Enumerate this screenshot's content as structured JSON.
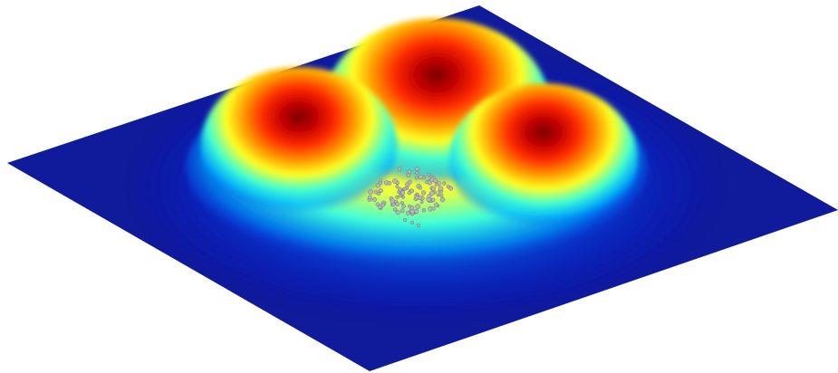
{
  "figure": {
    "kind": "3d-surface",
    "colormap": "jet",
    "colormap_stops": [
      "#00007f",
      "#0000ff",
      "#00ffff",
      "#ffff00",
      "#ff0000",
      "#7f0000"
    ],
    "plane_color": "#0a1a8c",
    "background": "#ffffff",
    "peaks": [
      {
        "label": "left",
        "height": 0.82
      },
      {
        "label": "center",
        "height": 1.0
      },
      {
        "label": "right",
        "height": 0.8
      }
    ],
    "particle_cluster": {
      "color": "#b8b8b8",
      "count": 110
    }
  }
}
